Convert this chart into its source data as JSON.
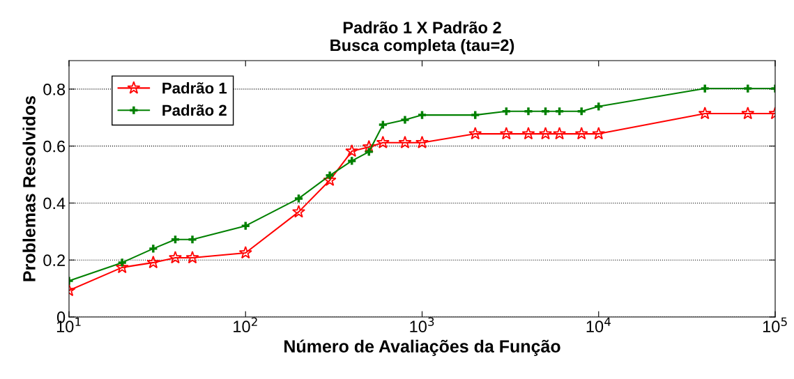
{
  "chart_data": {
    "type": "line",
    "title": "Padrão 1 X Padrão 2",
    "subtitle": "Busca completa (tau=2)",
    "xlabel": "Número de Avaliações da Função",
    "ylabel": "Problemas Resolvidos",
    "log": "x",
    "xlim": [
      10,
      100000
    ],
    "xticks": [
      {
        "value": 10,
        "label": "10$^{1}$"
      },
      {
        "value": 100,
        "label": "10$^{2}$"
      },
      {
        "value": 1000,
        "label": "10$^{3}$"
      },
      {
        "value": 10000,
        "label": "10$^{4}$"
      },
      {
        "value": 100000,
        "label": "10$^{5}$"
      }
    ],
    "ylim": [
      0,
      0.9
    ],
    "yticks": [
      0,
      0.2,
      0.4,
      0.6,
      0.8
    ],
    "grid": "y",
    "legend": "top left",
    "x": [
      10,
      20,
      30,
      40,
      50,
      100,
      200,
      300,
      400,
      500,
      600,
      800,
      1000,
      2000,
      3000,
      4000,
      5000,
      6000,
      8000,
      10000,
      40000,
      70000,
      100000
    ],
    "series": [
      {
        "name": "Padrão 1",
        "color": "#ff0000",
        "marker": "star",
        "values": [
          0.093,
          0.174,
          0.191,
          0.208,
          0.208,
          0.225,
          0.369,
          0.48,
          0.582,
          0.597,
          0.612,
          0.612,
          0.612,
          0.643,
          0.643,
          0.643,
          0.643,
          0.643,
          0.643,
          0.643,
          0.714,
          0.714,
          0.714
        ]
      },
      {
        "name": "Padrão 2",
        "color": "#008000",
        "marker": "cross",
        "values": [
          0.127,
          0.191,
          0.24,
          0.272,
          0.272,
          0.32,
          0.416,
          0.497,
          0.548,
          0.58,
          0.675,
          0.692,
          0.709,
          0.709,
          0.722,
          0.722,
          0.722,
          0.722,
          0.722,
          0.739,
          0.802,
          0.802,
          0.802
        ]
      }
    ]
  }
}
